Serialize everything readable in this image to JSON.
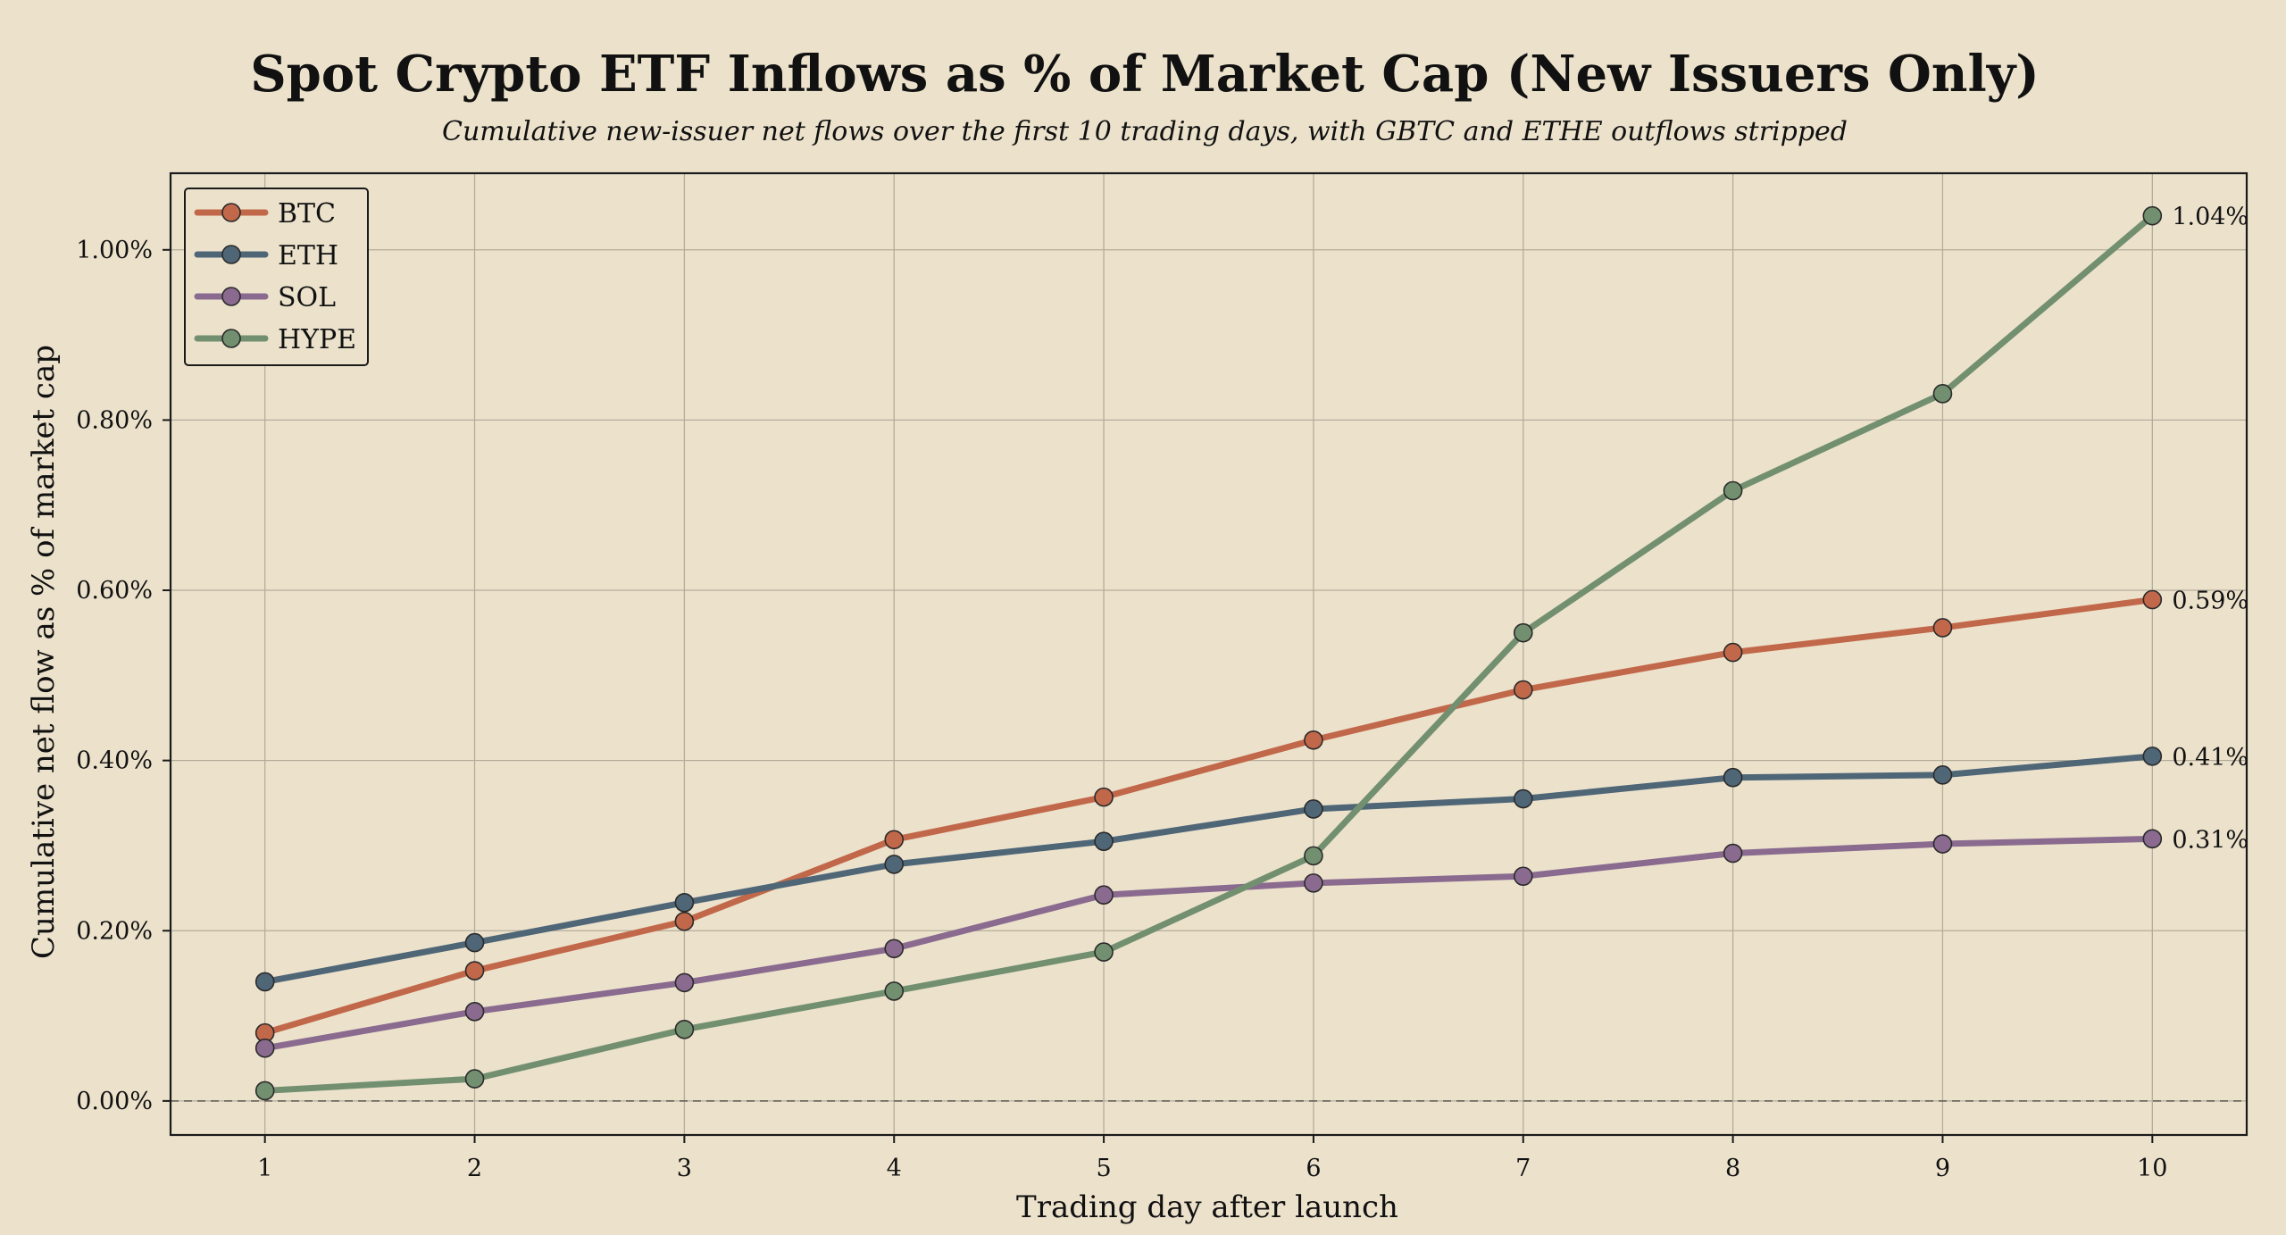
{
  "chart_data": {
    "type": "line",
    "title": "Spot Crypto ETF Inflows as % of Market Cap (New Issuers Only)",
    "subtitle": "Cumulative new-issuer net flows over the first 10 trading days, with GBTC and ETHE outflows stripped",
    "xlabel": "Trading day after launch",
    "ylabel": "Cumulative net flow as % of market cap",
    "x": [
      1,
      2,
      3,
      4,
      5,
      6,
      7,
      8,
      9,
      10
    ],
    "xlim": [
      0.55,
      10.45
    ],
    "ylim": [
      -0.04,
      1.09
    ],
    "yticks": [
      0.0,
      0.2,
      0.4,
      0.6,
      0.8,
      1.0
    ],
    "ytick_labels": [
      "0.00%",
      "0.20%",
      "0.40%",
      "0.60%",
      "0.80%",
      "1.00%"
    ],
    "xtick_labels": [
      "1",
      "2",
      "3",
      "4",
      "5",
      "6",
      "7",
      "8",
      "9",
      "10"
    ],
    "grid": true,
    "zero_line": "dashed",
    "legend_position": "top-left",
    "series": [
      {
        "name": "BTC",
        "color": "#c2684a",
        "values": [
          0.08,
          0.153,
          0.211,
          0.307,
          0.357,
          0.424,
          0.483,
          0.527,
          0.556,
          0.589
        ],
        "end_label": "0.59%"
      },
      {
        "name": "ETH",
        "color": "#4f6677",
        "values": [
          0.14,
          0.186,
          0.233,
          0.278,
          0.305,
          0.343,
          0.355,
          0.38,
          0.383,
          0.405
        ],
        "end_label": "0.41%"
      },
      {
        "name": "SOL",
        "color": "#8a6b8f",
        "values": [
          0.062,
          0.105,
          0.139,
          0.179,
          0.242,
          0.256,
          0.264,
          0.291,
          0.302,
          0.308
        ],
        "end_label": "0.31%"
      },
      {
        "name": "HYPE",
        "color": "#72906f",
        "values": [
          0.012,
          0.026,
          0.084,
          0.129,
          0.175,
          0.288,
          0.55,
          0.717,
          0.831,
          1.04
        ],
        "end_label": "1.04%"
      }
    ]
  }
}
